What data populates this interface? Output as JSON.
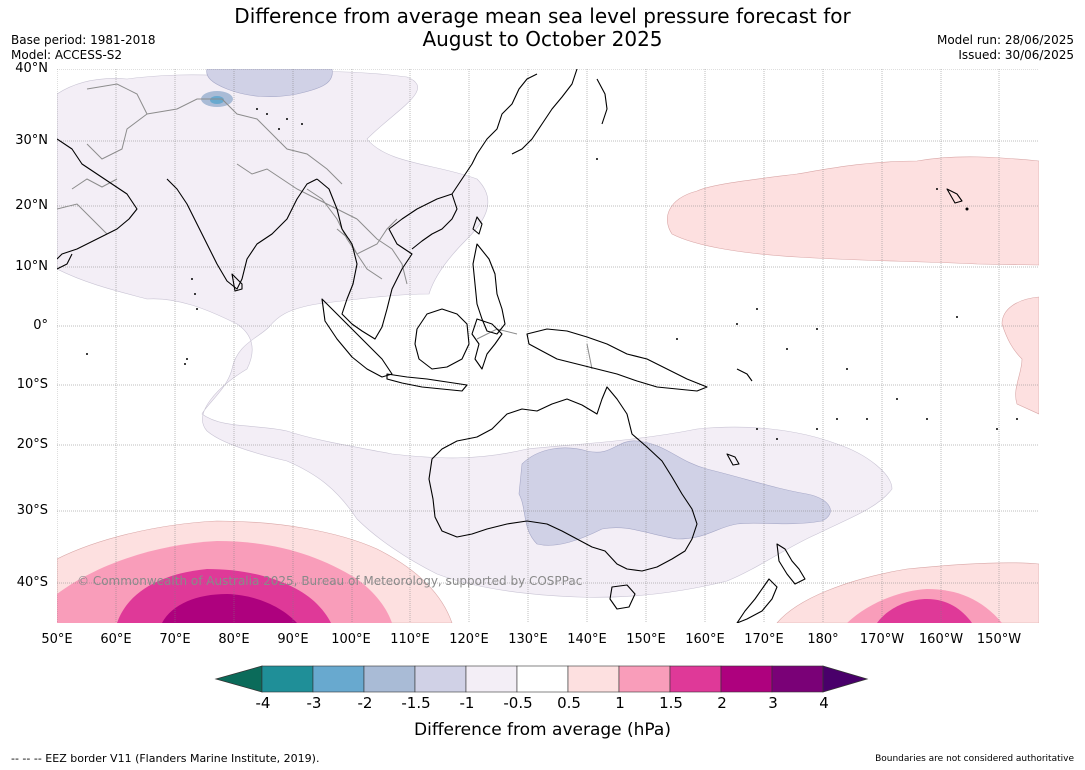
{
  "header": {
    "title_line1": "Difference from average mean sea level pressure forecast for",
    "title_line2": "August to October 2025",
    "base_period": "Base period: 1981-2018",
    "model": "Model: ACCESS-S2",
    "model_run": "Model run: 28/06/2025",
    "issued": "Issued: 30/06/2025"
  },
  "map": {
    "lat_labels": [
      "40°N",
      "30°N",
      "20°N",
      "10°N",
      "0°",
      "10°S",
      "20°S",
      "30°S",
      "40°S"
    ],
    "lon_labels": [
      "50°E",
      "60°E",
      "70°E",
      "80°E",
      "90°E",
      "100°E",
      "110°E",
      "120°E",
      "130°E",
      "140°E",
      "150°E",
      "160°E",
      "170°E",
      "180°",
      "170°W",
      "160°W",
      "150°W"
    ],
    "copyright": "© Commonwealth of Australia 2025, Bureau of Meteorology, supported by COSPPac",
    "colors": {
      "land_outline": "#000000",
      "border": "#8c8c8c",
      "grid": "#7f7f7f"
    }
  },
  "colorbar": {
    "title": "Difference from average (hPa)",
    "labels": [
      "-4",
      "-3",
      "-2",
      "-1.5",
      "-1",
      "-0.5",
      "0.5",
      "1",
      "1.5",
      "2",
      "3",
      "4"
    ],
    "colors": [
      "#0b6b5a",
      "#1f8f98",
      "#68a9cf",
      "#a9bbd6",
      "#d0d1e6",
      "#f3eef6",
      "#ffffff",
      "#fde0e0",
      "#f99dba",
      "#df3998",
      "#ae017e",
      "#7a0177",
      "#49006a"
    ]
  },
  "footer": {
    "eez": "--  --  -- EEZ border V11 (Flanders Marine Institute, 2019).",
    "boundaries": "Boundaries are not considered authoritative"
  }
}
